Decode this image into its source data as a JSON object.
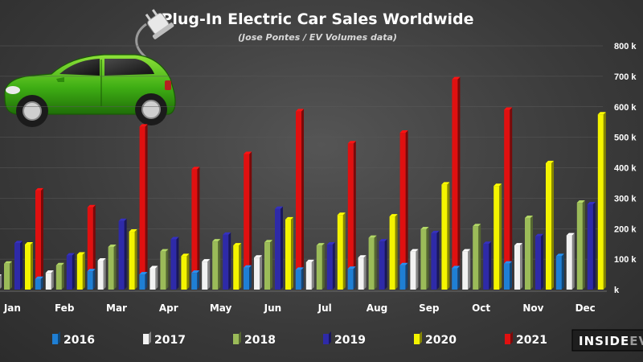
{
  "chart_data": {
    "type": "bar",
    "title": "Plug-In Electric Car Sales Worldwide",
    "subtitle": "(Jose Pontes / EV Volumes data)",
    "categories": [
      "Jan",
      "Feb",
      "Mar",
      "Apr",
      "May",
      "Jun",
      "Jul",
      "Aug",
      "Sep",
      "Oct",
      "Nov",
      "Dec"
    ],
    "series": [
      {
        "name": "2016",
        "color": "#1f7fd4",
        "values": [
          40,
          35,
          60,
          50,
          55,
          72,
          65,
          68,
          80,
          70,
          85,
          110
        ]
      },
      {
        "name": "2017",
        "color": "#f2f2f2",
        "values": [
          42,
          55,
          95,
          70,
          92,
          105,
          90,
          105,
          125,
          125,
          145,
          178
        ]
      },
      {
        "name": "2018",
        "color": "#9bbb59",
        "values": [
          85,
          80,
          140,
          125,
          158,
          155,
          145,
          170,
          198,
          208,
          235,
          285
        ]
      },
      {
        "name": "2019",
        "color": "#2e2aa8",
        "values": [
          152,
          112,
          225,
          165,
          180,
          265,
          148,
          158,
          185,
          150,
          175,
          280
        ]
      },
      {
        "name": "2020",
        "color": "#f4f400",
        "values": [
          148,
          115,
          190,
          110,
          145,
          230,
          245,
          240,
          345,
          340,
          415,
          575
        ]
      },
      {
        "name": "2021",
        "color": "#e01010",
        "values": [
          325,
          270,
          535,
          395,
          445,
          585,
          480,
          515,
          690,
          590,
          null,
          null
        ]
      }
    ],
    "y_ticks": [
      "k",
      "100 k",
      "200 k",
      "300 k",
      "400 k",
      "500 k",
      "600 k",
      "700 k",
      "800 k"
    ],
    "ylim": [
      0,
      800
    ],
    "xlabel": "",
    "ylabel": "",
    "legend_position": "bottom",
    "brand": {
      "part1": "INSIDE",
      "part2": "EV"
    }
  }
}
